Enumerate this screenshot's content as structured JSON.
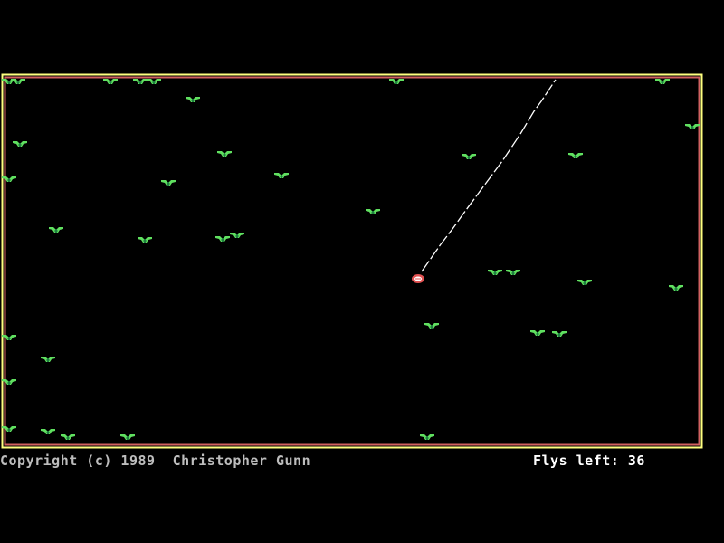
{
  "footer": {
    "copyright": "Copyright (c) 1989  Christopher Gunn",
    "flys_left_label": "Flys left:",
    "flys_left_value": "36"
  },
  "colors": {
    "border_outer": "#ffff80",
    "border_inner": "#d06060",
    "fly": "#60e060",
    "fly_body": "#208040",
    "frog": "#e05050",
    "tongue": "#ffffff"
  },
  "icons": {
    "fly": "fly-sprite",
    "frog": "frog-sprite"
  }
}
